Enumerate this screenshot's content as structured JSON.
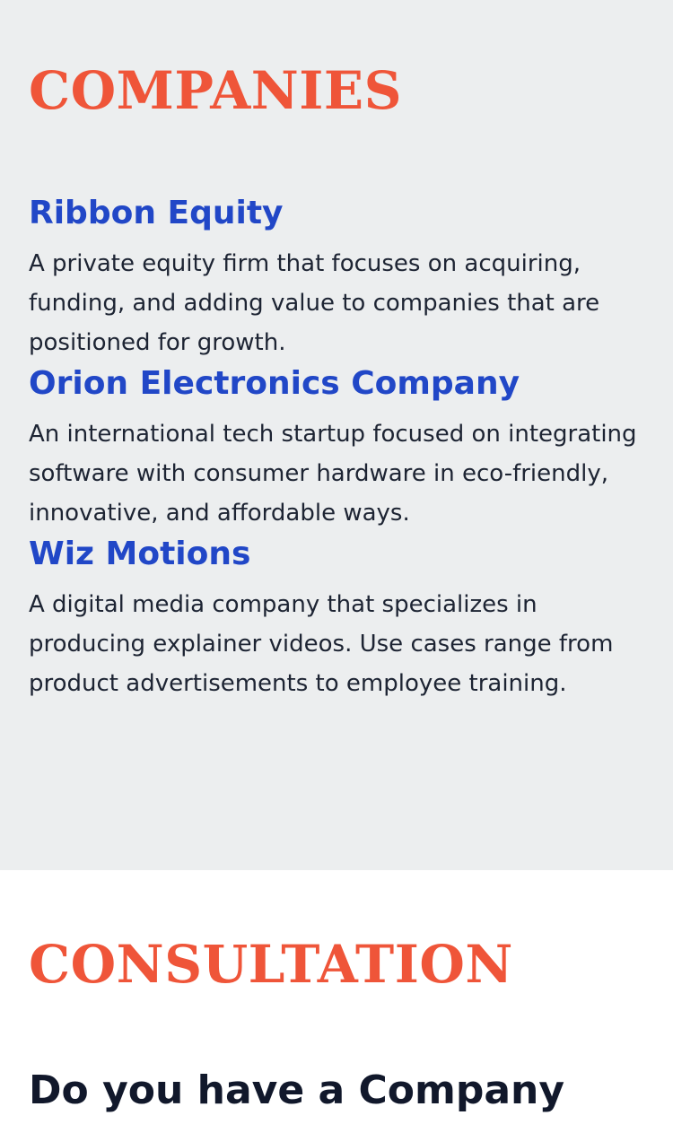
{
  "companies_section": {
    "title": "COMPANIES",
    "items": [
      {
        "name": "Ribbon Equity",
        "description": "A private equity firm that focuses on acquiring, funding, and adding value to companies that are positioned for growth."
      },
      {
        "name": "Orion Electronics Company",
        "description": "An international tech startup focused on integrating software with consumer hardware in eco-friendly, innovative, and affordable ways."
      },
      {
        "name": "Wiz Motions",
        "description": "A digital media company that specializes in producing explainer videos. Use cases range from product advertisements to employee training."
      }
    ]
  },
  "consultation_section": {
    "title": "CONSULTATION",
    "heading": "Do you have a Company"
  },
  "colors": {
    "accent_orange": "#ef5539",
    "company_blue": "#2147c7",
    "section_bg": "#eceeef"
  }
}
